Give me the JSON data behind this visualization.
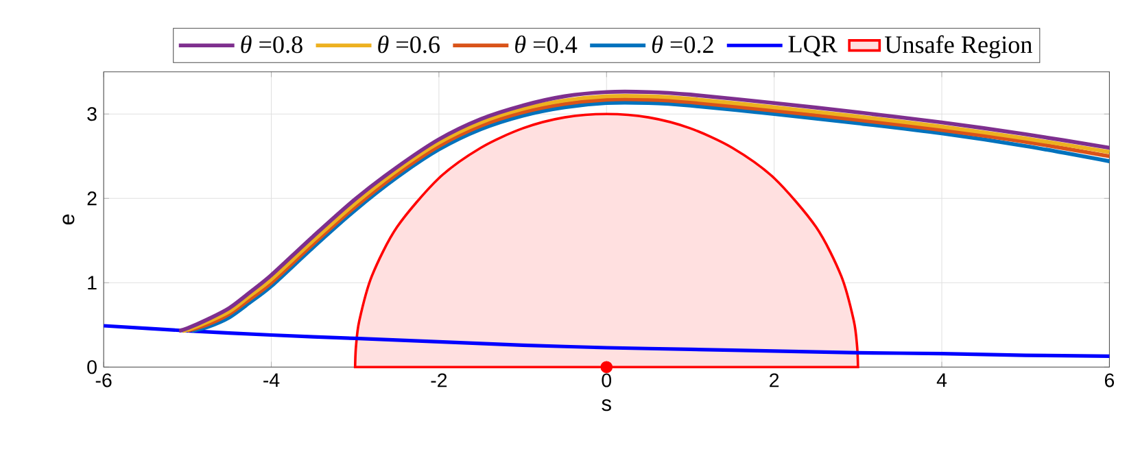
{
  "chart_data": {
    "type": "line",
    "xlabel": "s",
    "ylabel": "e",
    "xlim": [
      -6,
      6
    ],
    "ylim": [
      0,
      3.5
    ],
    "xticks": [
      -6,
      -4,
      -2,
      0,
      2,
      4,
      6
    ],
    "yticks": [
      0,
      1,
      2,
      3
    ],
    "grid": true,
    "legend": "top",
    "marker": "none",
    "series": [
      {
        "name": "*θ* =0.8",
        "color": "#7e2f8e",
        "x": [
          -5.1,
          -5,
          -4.75,
          -4.5,
          -4.25,
          -4,
          -3.5,
          -3,
          -2.5,
          -2,
          -1.5,
          -1,
          -0.5,
          0,
          0.5,
          1,
          2,
          3,
          4,
          5,
          6
        ],
        "values": [
          0.43,
          0.46,
          0.57,
          0.7,
          0.89,
          1.09,
          1.55,
          1.99,
          2.37,
          2.7,
          2.94,
          3.1,
          3.21,
          3.26,
          3.26,
          3.23,
          3.13,
          3.02,
          2.9,
          2.76,
          2.6
        ]
      },
      {
        "name": "*θ* =0.6",
        "color": "#edb120",
        "x": [
          -5.05,
          -5,
          -4.75,
          -4.5,
          -4.25,
          -4,
          -3.5,
          -3,
          -2.5,
          -2,
          -1.5,
          -1,
          -0.5,
          0,
          0.5,
          1,
          2,
          3,
          4,
          5,
          6
        ],
        "values": [
          0.43,
          0.44,
          0.54,
          0.66,
          0.85,
          1.04,
          1.5,
          1.94,
          2.33,
          2.66,
          2.9,
          3.06,
          3.16,
          3.21,
          3.21,
          3.18,
          3.08,
          2.97,
          2.85,
          2.71,
          2.55
        ]
      },
      {
        "name": "*θ* =0.4",
        "color": "#d95319",
        "x": [
          -5,
          -4.75,
          -4.5,
          -4.25,
          -4,
          -3.5,
          -3,
          -2.5,
          -2,
          -1.5,
          -1,
          -0.5,
          0,
          0.5,
          1,
          2,
          3,
          4,
          5,
          6
        ],
        "values": [
          0.43,
          0.51,
          0.63,
          0.81,
          1.0,
          1.46,
          1.9,
          2.29,
          2.62,
          2.86,
          3.02,
          3.12,
          3.17,
          3.17,
          3.14,
          3.04,
          2.93,
          2.81,
          2.67,
          2.5
        ]
      },
      {
        "name": "*θ* =0.2",
        "color": "#0072bd",
        "x": [
          -4.95,
          -4.75,
          -4.5,
          -4.25,
          -4,
          -3.5,
          -3,
          -2.5,
          -2,
          -1.5,
          -1,
          -0.5,
          0,
          0.5,
          1,
          2,
          3,
          4,
          5,
          6
        ],
        "values": [
          0.43,
          0.48,
          0.59,
          0.77,
          0.96,
          1.42,
          1.86,
          2.25,
          2.58,
          2.82,
          2.98,
          3.08,
          3.13,
          3.13,
          3.1,
          3.0,
          2.89,
          2.77,
          2.62,
          2.44
        ]
      },
      {
        "name": "LQR",
        "color": "#0000ff",
        "x": [
          -6,
          -5,
          -4,
          -3,
          -2,
          -1,
          0,
          1,
          2,
          3,
          4,
          5,
          6
        ],
        "values": [
          0.49,
          0.43,
          0.38,
          0.34,
          0.3,
          0.26,
          0.23,
          0.21,
          0.19,
          0.17,
          0.16,
          0.14,
          0.13
        ]
      },
      {
        "name": "Unsafe Region",
        "type": "area",
        "color": "#ff0000",
        "x": [
          -3,
          -2.99,
          -2.95,
          -2.8,
          -2.5,
          -2,
          -1.5,
          -1,
          -0.5,
          0,
          0.5,
          1,
          1.5,
          2,
          2.5,
          2.8,
          2.95,
          2.99,
          3
        ],
        "values": [
          0,
          0.24,
          0.55,
          1.08,
          1.66,
          2.24,
          2.6,
          2.83,
          2.96,
          3,
          2.96,
          2.83,
          2.6,
          2.24,
          1.66,
          1.08,
          0.55,
          0.24,
          0
        ]
      },
      {
        "type": "scatter",
        "marker": "circle",
        "color": "#ff0000",
        "x": [
          0
        ],
        "values": [
          0
        ]
      }
    ]
  }
}
